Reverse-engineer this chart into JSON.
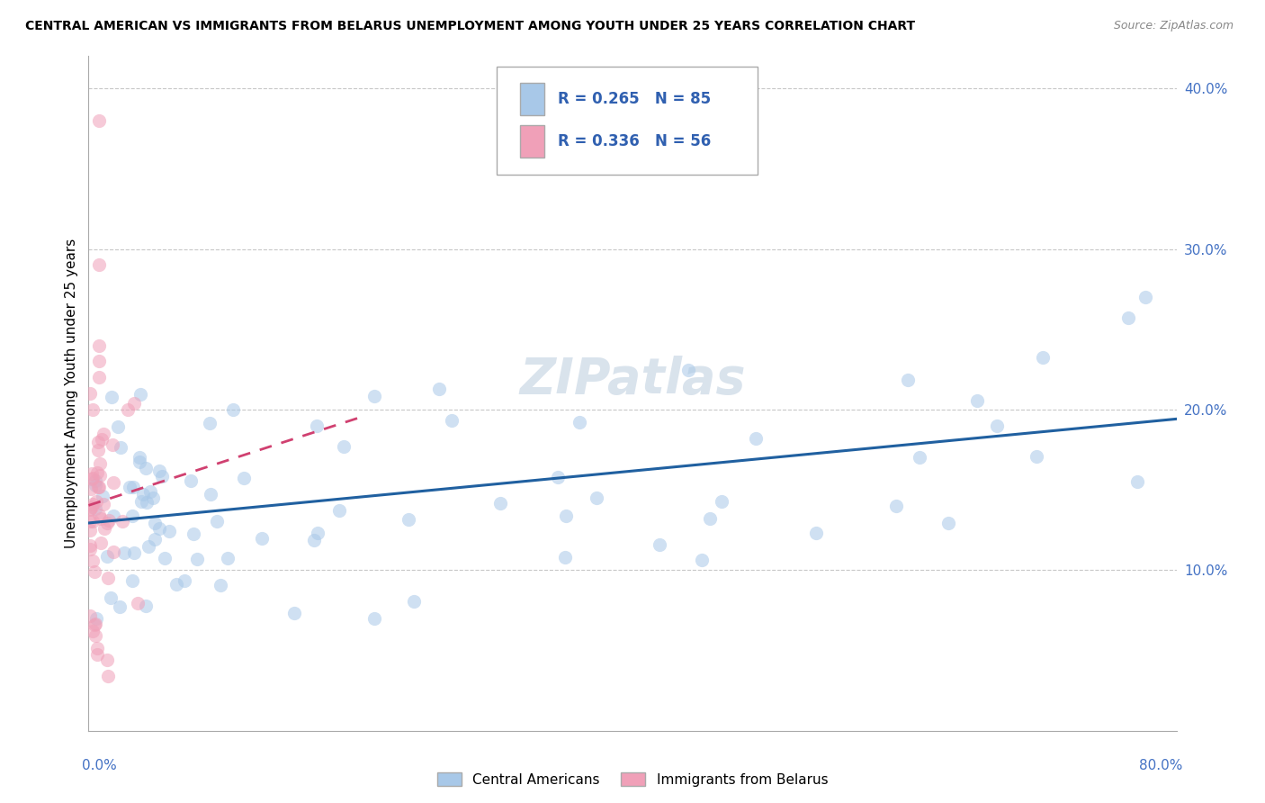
{
  "title": "CENTRAL AMERICAN VS IMMIGRANTS FROM BELARUS UNEMPLOYMENT AMONG YOUTH UNDER 25 YEARS CORRELATION CHART",
  "source": "Source: ZipAtlas.com",
  "ylabel": "Unemployment Among Youth under 25 years",
  "watermark": "ZIPatlas",
  "blue_color": "#a8c8e8",
  "pink_color": "#f0a0b8",
  "blue_line_color": "#2060a0",
  "pink_line_color": "#d04070",
  "background_color": "#ffffff",
  "grid_color": "#c8c8c8",
  "xlim": [
    0.0,
    0.8
  ],
  "ylim": [
    0.0,
    0.42
  ],
  "yticks": [
    0.1,
    0.2,
    0.3,
    0.4
  ],
  "ytick_labels": [
    "10.0%",
    "20.0%",
    "30.0%",
    "40.0%"
  ],
  "legend_R1": "R = 0.265",
  "legend_N1": "N = 85",
  "legend_R2": "R = 0.336",
  "legend_N2": "N = 56",
  "legend_color": "#3060b0"
}
